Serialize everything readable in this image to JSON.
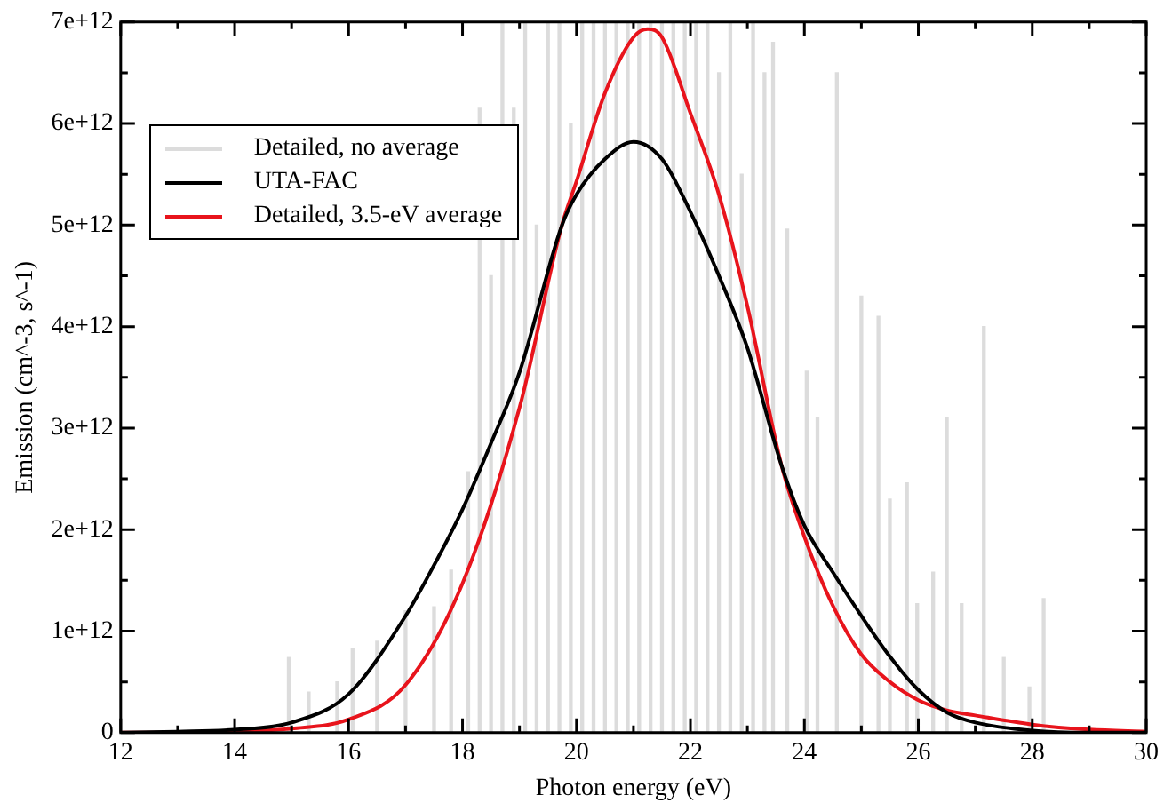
{
  "chart_data": {
    "type": "line",
    "xlabel": "Photon energy (eV)",
    "ylabel": "Emission (cm^-3, s^-1)",
    "xlim": [
      12,
      30
    ],
    "xticks": [
      12,
      14,
      16,
      18,
      20,
      22,
      24,
      26,
      28,
      30
    ],
    "ylim": [
      0,
      7000000000000.0
    ],
    "yticks": [
      0,
      {
        "value": 1000000000000.0,
        "label": "1e+12"
      },
      {
        "value": 2000000000000.0,
        "label": "2e+12"
      },
      {
        "value": 3000000000000.0,
        "label": "3e+12"
      },
      {
        "value": 4000000000000.0,
        "label": "4e+12"
      },
      {
        "value": 5000000000000.0,
        "label": "5e+12"
      },
      {
        "value": 6000000000000.0,
        "label": "6e+12"
      },
      {
        "value": 7000000000000.0,
        "label": "7e+12"
      }
    ],
    "grid": false,
    "legend": "top left",
    "marker": "none",
    "line_style": "solid",
    "series": [
      {
        "name": "Detailed, no average",
        "color": "#dcdcdc",
        "type": "bar",
        "x": [
          14.95,
          15.3,
          15.8,
          16.07,
          16.5,
          17.0,
          17.5,
          17.8,
          18.1,
          18.3,
          18.5,
          18.7,
          18.9,
          19.1,
          19.3,
          19.5,
          19.7,
          19.9,
          20.1,
          20.3,
          20.5,
          20.7,
          20.9,
          21.1,
          21.3,
          21.5,
          21.7,
          21.9,
          22.1,
          22.3,
          22.5,
          22.7,
          22.9,
          23.1,
          23.3,
          23.45,
          23.7,
          24.04,
          24.23,
          24.57,
          25.0,
          25.3,
          25.5,
          25.8,
          25.98,
          26.26,
          26.5,
          26.76,
          27.15,
          27.5,
          27.95,
          28.2
        ],
        "values": [
          740000000000.0,
          400000000000.0,
          500000000000.0,
          830000000000.0,
          900000000000.0,
          1200000000000.0,
          1240000000000.0,
          1600000000000.0,
          2570000000000.0,
          6150000000000.0,
          4500000000000.0,
          7000000000000.0,
          6150000000000.0,
          7000000000000.0,
          5000000000000.0,
          7000000000000.0,
          7000000000000.0,
          6000000000000.0,
          7000000000000.0,
          7000000000000.0,
          7000000000000.0,
          7000000000000.0,
          7000000000000.0,
          7000000000000.0,
          7000000000000.0,
          7000000000000.0,
          7000000000000.0,
          7000000000000.0,
          7000000000000.0,
          7000000000000.0,
          6500000000000.0,
          7000000000000.0,
          5500000000000.0,
          7000000000000.0,
          6500000000000.0,
          6800000000000.0,
          4960000000000.0,
          3560000000000.0,
          3100000000000.0,
          6500000000000.0,
          4300000000000.0,
          4100000000000.0,
          2300000000000.0,
          2460000000000.0,
          1270000000000.0,
          1580000000000.0,
          3100000000000.0,
          1270000000000.0,
          4000000000000.0,
          740000000000.0,
          450000000000.0,
          1320000000000.0
        ]
      },
      {
        "name": "UTA-FAC",
        "color": "#000000",
        "x": [
          12,
          13,
          14,
          15,
          16,
          17,
          17.5,
          18,
          18.5,
          19,
          19.74,
          20,
          20.5,
          21,
          21.5,
          22,
          22.5,
          23,
          23.6,
          24,
          24.5,
          25,
          25.5,
          26,
          26.5,
          27,
          28,
          29,
          30
        ],
        "values": [
          0,
          10000000000.0,
          30000000000.0,
          100000000000.0,
          380000000000.0,
          1150000000000.0,
          1650000000000.0,
          2200000000000.0,
          2850000000000.0,
          3550000000000.0,
          4990000000000.0,
          5300000000000.0,
          5650000000000.0,
          5820000000000.0,
          5650000000000.0,
          5130000000000.0,
          4500000000000.0,
          3790000000000.0,
          2630000000000.0,
          2040000000000.0,
          1580000000000.0,
          1150000000000.0,
          750000000000.0,
          420000000000.0,
          200000000000.0,
          100000000000.0,
          20000000000.0,
          0,
          0
        ]
      },
      {
        "name": "Detailed, 3.5-eV average",
        "color": "#e8141c",
        "x": [
          12,
          13,
          14,
          15,
          16,
          17,
          18,
          19,
          19.74,
          20,
          20.5,
          21,
          21.25,
          21.5,
          22,
          22.5,
          23,
          23.6,
          24,
          24.5,
          25,
          25.5,
          26,
          26.5,
          27,
          28,
          29,
          30
        ],
        "values": [
          0,
          0,
          10000000000.0,
          40000000000.0,
          130000000000.0,
          470000000000.0,
          1470000000000.0,
          3200000000000.0,
          4990000000000.0,
          5430000000000.0,
          6300000000000.0,
          6850000000000.0,
          6930000000000.0,
          6850000000000.0,
          6100000000000.0,
          5300000000000.0,
          4200000000000.0,
          2630000000000.0,
          1930000000000.0,
          1250000000000.0,
          770000000000.0,
          500000000000.0,
          320000000000.0,
          220000000000.0,
          170000000000.0,
          80000000000.0,
          30000000000.0,
          10000000000.0
        ]
      }
    ]
  }
}
